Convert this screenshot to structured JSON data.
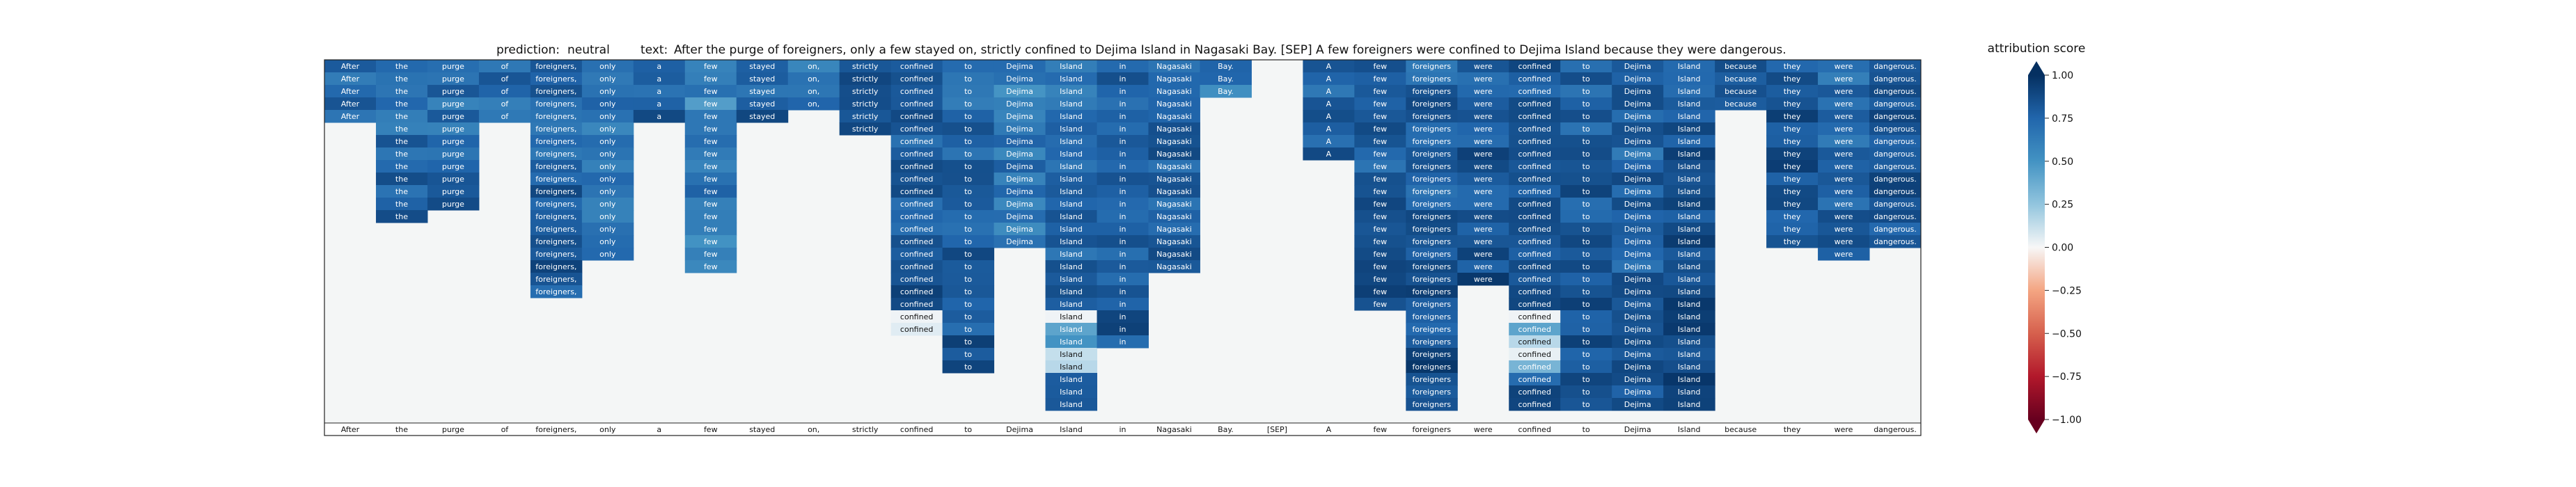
{
  "chart_data": {
    "type": "heatmap",
    "title": {
      "prediction_label": "prediction:",
      "prediction_value": "neutral",
      "text_label": "text:",
      "text_value": "After the purge of foreigners, only a few stayed on, strictly confined to Dejima Island in Nagasaki Bay. [SEP] A few foreigners were confined to Dejima Island because they were dangerous."
    },
    "tokens": [
      "After",
      "the",
      "purge",
      "of",
      "foreigners,",
      "only",
      "a",
      "few",
      "stayed",
      "on,",
      "strictly",
      "confined",
      "to",
      "Dejima",
      "Island",
      "in",
      "Nagasaki",
      "Bay.",
      "[SEP]",
      "A",
      "few",
      "foreigners",
      "were",
      "confined",
      "to",
      "Dejima",
      "Island",
      "because",
      "they",
      "were",
      "dangerous."
    ],
    "num_rows": 29,
    "row_spans": [
      [
        0,
        5
      ],
      [
        0,
        13
      ],
      [
        0,
        12
      ],
      [
        0,
        5
      ],
      [
        0,
        19
      ],
      [
        0,
        16
      ],
      [
        0,
        5
      ],
      [
        0,
        17
      ],
      [
        0,
        5
      ],
      [
        0,
        4
      ],
      [
        0,
        6
      ],
      [
        0,
        22
      ],
      [
        0,
        25
      ],
      [
        0,
        15
      ],
      [
        0,
        28
      ],
      [
        0,
        23
      ],
      [
        0,
        17
      ],
      [
        0,
        3
      ],
      [
        0,
        3
      ],
      [
        0,
        8
      ],
      [
        0,
        20
      ],
      [
        0,
        28
      ],
      [
        0,
        18
      ],
      [
        0,
        28
      ],
      [
        0,
        28
      ],
      [
        0,
        28
      ],
      [
        0,
        28
      ],
      [
        0,
        4
      ],
      [
        0,
        15
      ],
      [
        0,
        16
      ],
      [
        0,
        15
      ]
    ],
    "col_intensity": [
      0.8,
      0.78,
      0.78,
      0.78,
      0.8,
      0.72,
      0.82,
      0.7,
      0.82,
      0.78,
      0.84,
      0.82,
      0.8,
      0.72,
      0.75,
      0.8,
      0.8,
      0.72,
      0.0,
      0.8,
      0.82,
      0.82,
      0.84,
      0.84,
      0.82,
      0.8,
      0.85,
      0.82,
      0.85,
      0.8,
      0.84
    ],
    "light_cells": [
      {
        "col": 5,
        "rows": [
          19,
          20
        ],
        "values": [
          0.1,
          0.55
        ]
      },
      {
        "col": 7,
        "rows": [
          20
        ],
        "values": [
          0.15
        ]
      },
      {
        "col": 10,
        "rows": [
          20,
          21,
          22
        ],
        "values": [
          0.05,
          0.45,
          0.55
        ]
      },
      {
        "col": 11,
        "rows": [
          20,
          21,
          22,
          23,
          24,
          25,
          26,
          27,
          28
        ],
        "values": [
          0.05,
          0.15,
          0.45,
          0.1,
          0.6,
          0.7,
          0.75,
          0.85,
          0.88
        ]
      },
      {
        "col": 13,
        "rows": [
          20,
          21,
          22,
          23,
          24,
          25
        ],
        "values": [
          0.05,
          0.65,
          0.5,
          0.4,
          0.4,
          0.7
        ]
      },
      {
        "col": 14,
        "rows": [
          20,
          21,
          22,
          23,
          24
        ],
        "values": [
          0.05,
          0.6,
          0.65,
          0.3,
          0.35
        ]
      },
      {
        "col": 17,
        "rows": [
          20,
          21,
          22,
          23
        ],
        "values": [
          0.05,
          0.25,
          0.35,
          0.4
        ]
      },
      {
        "col": 23,
        "rows": [
          20,
          21,
          22,
          23,
          24,
          25
        ],
        "values": [
          0.05,
          0.6,
          0.35,
          0.1,
          0.55,
          0.78
        ]
      },
      {
        "col": 27,
        "rows": [
          20,
          21,
          22,
          23,
          24,
          25,
          26,
          27,
          28
        ],
        "values": [
          0.02,
          0.5,
          0.45,
          0.2,
          0.55,
          0.6,
          0.75,
          0.8,
          0.85
        ]
      },
      {
        "col": 30,
        "rows": [
          20,
          21,
          22,
          23,
          24,
          25,
          26,
          27,
          28
        ],
        "values": [
          0.03,
          0.55,
          0.6,
          0.15,
          0.6,
          0.7,
          0.75,
          0.8,
          0.85
        ]
      }
    ],
    "colorbar": {
      "label": "attribution score",
      "ticks": [
        "1.00",
        "0.75",
        "0.50",
        "0.25",
        "0.00",
        "−0.25",
        "−0.50",
        "−0.75",
        "−1.00"
      ],
      "tick_values": [
        1.0,
        0.75,
        0.5,
        0.25,
        0.0,
        -0.25,
        -0.5,
        -0.75,
        -1.0
      ],
      "range": [
        -1.0,
        1.0
      ],
      "colormap": "RdBu"
    },
    "empty_color": "#f4f6f6"
  }
}
